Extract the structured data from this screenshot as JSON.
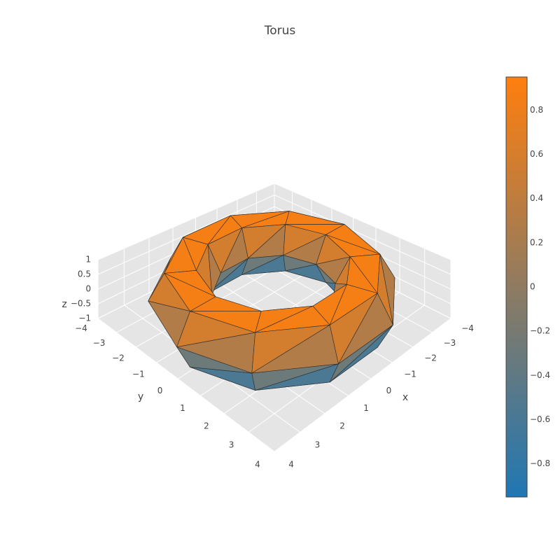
{
  "chart_data": {
    "type": "trisurf",
    "title": "Torus",
    "x_label": "x",
    "y_label": "y",
    "z_label": "z",
    "xlim": [
      -4,
      4
    ],
    "ylim": [
      -4,
      4
    ],
    "zlim": [
      -1,
      1
    ],
    "xticks": [
      {
        "value": -4,
        "label": "−4"
      },
      {
        "value": -3,
        "label": "−3"
      },
      {
        "value": -2,
        "label": "−2"
      },
      {
        "value": -1,
        "label": "−1"
      },
      0,
      1,
      2,
      3,
      4
    ],
    "yticks": [
      {
        "value": -4,
        "label": "−4"
      },
      {
        "value": -3,
        "label": "−3"
      },
      {
        "value": -2,
        "label": "−2"
      },
      {
        "value": -1,
        "label": "−1"
      },
      0,
      1,
      2,
      3,
      4
    ],
    "zticks": [
      {
        "value": -1,
        "label": "−1"
      },
      {
        "value": -0.5,
        "label": "−0.5"
      },
      0,
      0.5,
      1
    ],
    "x": [
      [
        4,
        3.5,
        2.5,
        2,
        2.5,
        3.5
      ],
      [
        3.24,
        2.83,
        2.02,
        1.62,
        2.02,
        2.83
      ],
      [
        1.24,
        1.08,
        0.77,
        0.62,
        0.77,
        1.08
      ],
      [
        -1.24,
        -1.08,
        -0.77,
        -0.62,
        -0.77,
        -1.08
      ],
      [
        -3.24,
        -2.83,
        -2.02,
        -1.62,
        -2.02,
        -2.83
      ],
      [
        -4,
        -3.5,
        -2.5,
        -2,
        -2.5,
        -3.5
      ],
      [
        -3.24,
        -2.83,
        -2.02,
        -1.62,
        -2.02,
        -2.83
      ],
      [
        -1.24,
        -1.08,
        -0.77,
        -0.62,
        -0.77,
        -1.08
      ],
      [
        1.24,
        1.08,
        0.77,
        0.62,
        0.77,
        1.08
      ],
      [
        3.24,
        2.83,
        2.02,
        1.62,
        2.02,
        2.83
      ]
    ],
    "y": [
      [
        0,
        0,
        0,
        0,
        0,
        0
      ],
      [
        2.35,
        2.06,
        1.47,
        1.18,
        1.47,
        2.06
      ],
      [
        3.8,
        3.33,
        2.38,
        1.9,
        2.38,
        3.33
      ],
      [
        3.8,
        3.33,
        2.38,
        1.9,
        2.38,
        3.33
      ],
      [
        2.35,
        2.06,
        1.47,
        1.18,
        1.47,
        2.06
      ],
      [
        0,
        0,
        0,
        0,
        0,
        0
      ],
      [
        -2.35,
        -2.06,
        -1.47,
        -1.18,
        -1.47,
        -2.06
      ],
      [
        -3.8,
        -3.33,
        -2.38,
        -1.9,
        -2.38,
        -3.33
      ],
      [
        -3.8,
        -3.33,
        -2.38,
        -1.9,
        -2.38,
        -3.33
      ],
      [
        -2.35,
        -2.06,
        -1.47,
        -1.18,
        -1.47,
        -2.06
      ]
    ],
    "z": [
      [
        0,
        0.87,
        0.87,
        0,
        -0.87,
        -0.87
      ],
      [
        0,
        0.87,
        0.87,
        0,
        -0.87,
        -0.87
      ],
      [
        0,
        0.87,
        0.87,
        0,
        -0.87,
        -0.87
      ],
      [
        0,
        0.87,
        0.87,
        0,
        -0.87,
        -0.87
      ],
      [
        0,
        0.87,
        0.87,
        0,
        -0.87,
        -0.87
      ],
      [
        0,
        0.87,
        0.87,
        0,
        -0.87,
        -0.87
      ],
      [
        0,
        0.87,
        0.87,
        0,
        -0.87,
        -0.87
      ],
      [
        0,
        0.87,
        0.87,
        0,
        -0.87,
        -0.87
      ],
      [
        0,
        0.87,
        0.87,
        0,
        -0.87,
        -0.87
      ],
      [
        0,
        0.87,
        0.87,
        0,
        -0.87,
        -0.87
      ]
    ],
    "colorscale": [
      "#1f77b4",
      "#ff7f0e"
    ],
    "clim": [
      -0.95,
      0.95
    ],
    "colorbar_ticks": [
      {
        "value": -0.8,
        "label": "−0.8"
      },
      {
        "value": -0.6,
        "label": "−0.6"
      },
      {
        "value": -0.4,
        "label": "−0.4"
      },
      {
        "value": -0.2,
        "label": "−0.2"
      },
      0,
      0.2,
      0.4,
      0.6,
      0.8
    ]
  }
}
